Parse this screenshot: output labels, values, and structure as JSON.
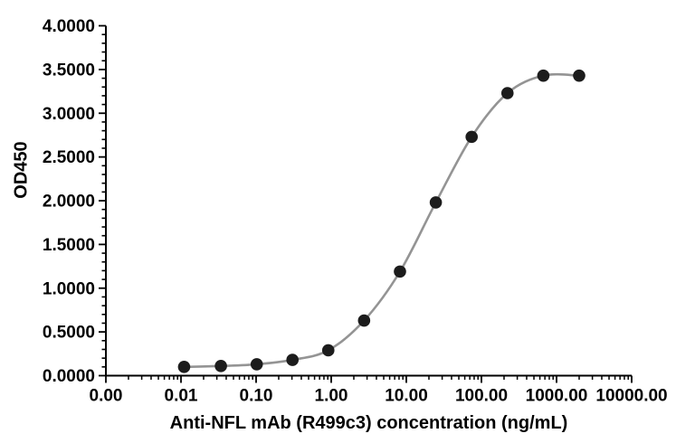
{
  "figure": {
    "background": "#ffffff",
    "axis_color": "#000000",
    "tick_label_color": "#000000"
  },
  "chart_data": {
    "type": "scatter",
    "title": "",
    "xlabel": "Anti-NFL mAb (R499c3) concentration (ng/mL)",
    "ylabel": "OD450",
    "x_scale": "log",
    "grid": false,
    "legend": "none",
    "line_color": "#949494",
    "marker_color": "#1c1c1c",
    "marker_radius": 6.8,
    "xlim": [
      0.001,
      10000
    ],
    "ylim": [
      0,
      4
    ],
    "x": [
      0.011,
      0.034,
      0.102,
      0.305,
      0.914,
      2.74,
      8.23,
      24.7,
      74.1,
      222,
      667,
      2000
    ],
    "y": [
      0.1,
      0.11,
      0.13,
      0.18,
      0.29,
      0.63,
      1.19,
      1.98,
      2.73,
      3.23,
      3.43,
      3.43
    ],
    "x_ticks": [
      {
        "value": 0.001,
        "label": "0.00"
      },
      {
        "value": 0.01,
        "label": "0.01"
      },
      {
        "value": 0.1,
        "label": "0.10"
      },
      {
        "value": 1,
        "label": "1.00"
      },
      {
        "value": 10,
        "label": "10.00"
      },
      {
        "value": 100,
        "label": "100.00"
      },
      {
        "value": 1000,
        "label": "1000.00"
      },
      {
        "value": 10000,
        "label": "10000.00"
      }
    ],
    "y_ticks": [
      {
        "value": 0,
        "label": "0.0000"
      },
      {
        "value": 0.5,
        "label": "0.5000"
      },
      {
        "value": 1,
        "label": "1.0000"
      },
      {
        "value": 1.5,
        "label": "1.5000"
      },
      {
        "value": 2,
        "label": "2.0000"
      },
      {
        "value": 2.5,
        "label": "2.5000"
      },
      {
        "value": 3,
        "label": "3.0000"
      },
      {
        "value": 3.5,
        "label": "3.5000"
      },
      {
        "value": 4,
        "label": "4.0000"
      }
    ],
    "y_minor_step": 0.1
  }
}
